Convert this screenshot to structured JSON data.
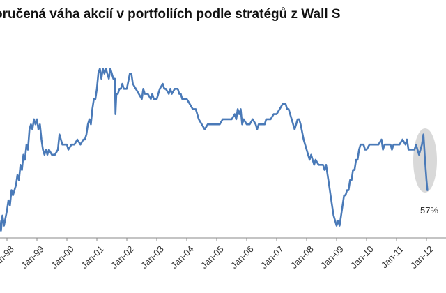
{
  "chart_data": {
    "type": "line",
    "title": "oručená váha akcií v portfoliích podle stratégů z Wall S",
    "xlabel": "",
    "ylabel": "",
    "grid": false,
    "legend": "none",
    "line_color": "#4a7ab8",
    "highlight_color": "#d9d9d9",
    "x_ticks": [
      "Jan-98",
      "Jan-99",
      "Jan-00",
      "Jan-01",
      "Jan-02",
      "Jan-03",
      "Jan-04",
      "Jan-05",
      "Jan-06",
      "Jan-07",
      "Jan-08",
      "Jan-09",
      "Jan-10",
      "Jan-11",
      "Jan-12"
    ],
    "annotation": {
      "label": "57%",
      "x": 2012.0
    },
    "series": [
      {
        "values": [
          [
            1997.75,
            51
          ],
          [
            1997.8,
            49
          ],
          [
            1997.85,
            52
          ],
          [
            1997.9,
            50
          ],
          [
            1998.0,
            53
          ],
          [
            1998.05,
            55
          ],
          [
            1998.1,
            54
          ],
          [
            1998.15,
            57
          ],
          [
            1998.2,
            56
          ],
          [
            1998.3,
            58
          ],
          [
            1998.35,
            60
          ],
          [
            1998.4,
            59
          ],
          [
            1998.45,
            62
          ],
          [
            1998.5,
            61
          ],
          [
            1998.55,
            64
          ],
          [
            1998.6,
            63
          ],
          [
            1998.65,
            66
          ],
          [
            1998.7,
            65
          ],
          [
            1998.75,
            69
          ],
          [
            1998.8,
            70
          ],
          [
            1998.85,
            69
          ],
          [
            1998.9,
            71
          ],
          [
            1998.95,
            70
          ],
          [
            1999.0,
            71
          ],
          [
            1999.05,
            69
          ],
          [
            1999.1,
            70
          ],
          [
            1999.15,
            67
          ],
          [
            1999.2,
            65
          ],
          [
            1999.25,
            64
          ],
          [
            1999.3,
            65
          ],
          [
            1999.35,
            64
          ],
          [
            1999.4,
            65
          ],
          [
            1999.5,
            64
          ],
          [
            1999.6,
            64
          ],
          [
            1999.7,
            65
          ],
          [
            1999.75,
            68
          ],
          [
            1999.8,
            67
          ],
          [
            1999.85,
            66
          ],
          [
            1999.9,
            66
          ],
          [
            2000.0,
            66
          ],
          [
            2000.05,
            65
          ],
          [
            2000.15,
            66
          ],
          [
            2000.25,
            66
          ],
          [
            2000.35,
            67
          ],
          [
            2000.45,
            66
          ],
          [
            2000.55,
            67
          ],
          [
            2000.6,
            67
          ],
          [
            2000.65,
            68
          ],
          [
            2000.7,
            70
          ],
          [
            2000.75,
            71
          ],
          [
            2000.8,
            70
          ],
          [
            2000.85,
            73
          ],
          [
            2000.9,
            75
          ],
          [
            2000.95,
            75
          ],
          [
            2001.0,
            77
          ],
          [
            2001.05,
            80
          ],
          [
            2001.1,
            81
          ],
          [
            2001.15,
            79
          ],
          [
            2001.2,
            81
          ],
          [
            2001.25,
            80
          ],
          [
            2001.3,
            81
          ],
          [
            2001.35,
            80
          ],
          [
            2001.4,
            79
          ],
          [
            2001.45,
            81
          ],
          [
            2001.5,
            80
          ],
          [
            2001.55,
            79
          ],
          [
            2001.6,
            79
          ],
          [
            2001.62,
            72
          ],
          [
            2001.65,
            76
          ],
          [
            2001.7,
            76
          ],
          [
            2001.75,
            77
          ],
          [
            2001.8,
            77
          ],
          [
            2001.85,
            78
          ],
          [
            2001.9,
            77
          ],
          [
            2002.0,
            77
          ],
          [
            2002.1,
            80
          ],
          [
            2002.15,
            80
          ],
          [
            2002.2,
            78
          ],
          [
            2002.3,
            77
          ],
          [
            2002.4,
            76
          ],
          [
            2002.5,
            75
          ],
          [
            2002.55,
            77
          ],
          [
            2002.6,
            76
          ],
          [
            2002.7,
            76
          ],
          [
            2002.8,
            75
          ],
          [
            2002.85,
            76
          ],
          [
            2002.9,
            75
          ],
          [
            2003.0,
            75
          ],
          [
            2003.05,
            76
          ],
          [
            2003.1,
            77
          ],
          [
            2003.2,
            78
          ],
          [
            2003.25,
            77
          ],
          [
            2003.3,
            77
          ],
          [
            2003.4,
            76
          ],
          [
            2003.45,
            77
          ],
          [
            2003.5,
            76
          ],
          [
            2003.6,
            77
          ],
          [
            2003.7,
            77
          ],
          [
            2003.75,
            76
          ],
          [
            2003.8,
            76
          ],
          [
            2003.85,
            75
          ],
          [
            2004.0,
            75
          ],
          [
            2004.1,
            74
          ],
          [
            2004.2,
            73
          ],
          [
            2004.3,
            73
          ],
          [
            2004.4,
            71
          ],
          [
            2004.5,
            70
          ],
          [
            2004.6,
            69
          ],
          [
            2004.7,
            70
          ],
          [
            2004.8,
            70
          ],
          [
            2004.9,
            70
          ],
          [
            2005.0,
            70
          ],
          [
            2005.1,
            70
          ],
          [
            2005.2,
            71
          ],
          [
            2005.3,
            71
          ],
          [
            2005.4,
            71
          ],
          [
            2005.5,
            71
          ],
          [
            2005.6,
            72
          ],
          [
            2005.65,
            71
          ],
          [
            2005.7,
            73
          ],
          [
            2005.75,
            72
          ],
          [
            2005.8,
            73
          ],
          [
            2005.85,
            70
          ],
          [
            2005.9,
            71
          ],
          [
            2006.0,
            70
          ],
          [
            2006.1,
            70
          ],
          [
            2006.2,
            71
          ],
          [
            2006.3,
            70
          ],
          [
            2006.35,
            69
          ],
          [
            2006.4,
            70
          ],
          [
            2006.5,
            70
          ],
          [
            2006.6,
            70
          ],
          [
            2006.65,
            71
          ],
          [
            2006.7,
            71
          ],
          [
            2006.8,
            71
          ],
          [
            2006.9,
            72
          ],
          [
            2007.0,
            72
          ],
          [
            2007.1,
            73
          ],
          [
            2007.2,
            74
          ],
          [
            2007.3,
            74
          ],
          [
            2007.35,
            73
          ],
          [
            2007.4,
            73
          ],
          [
            2007.5,
            71
          ],
          [
            2007.6,
            69
          ],
          [
            2007.7,
            71
          ],
          [
            2007.75,
            71
          ],
          [
            2007.8,
            70
          ],
          [
            2007.9,
            67
          ],
          [
            2008.0,
            65
          ],
          [
            2008.1,
            63
          ],
          [
            2008.15,
            64
          ],
          [
            2008.2,
            63
          ],
          [
            2008.25,
            62
          ],
          [
            2008.3,
            63
          ],
          [
            2008.4,
            62
          ],
          [
            2008.5,
            62
          ],
          [
            2008.55,
            62
          ],
          [
            2008.6,
            61
          ],
          [
            2008.65,
            62
          ],
          [
            2008.7,
            60
          ],
          [
            2008.75,
            58
          ],
          [
            2008.8,
            56
          ],
          [
            2008.85,
            54
          ],
          [
            2008.9,
            52
          ],
          [
            2008.95,
            51
          ],
          [
            2009.0,
            50
          ],
          [
            2009.05,
            51
          ],
          [
            2009.1,
            50
          ],
          [
            2009.15,
            52
          ],
          [
            2009.2,
            54
          ],
          [
            2009.25,
            56
          ],
          [
            2009.3,
            56
          ],
          [
            2009.35,
            57
          ],
          [
            2009.4,
            57
          ],
          [
            2009.45,
            59
          ],
          [
            2009.5,
            59
          ],
          [
            2009.55,
            61
          ],
          [
            2009.6,
            61
          ],
          [
            2009.65,
            63
          ],
          [
            2009.7,
            63
          ],
          [
            2009.75,
            65
          ],
          [
            2009.8,
            66
          ],
          [
            2009.85,
            66
          ],
          [
            2009.9,
            66
          ],
          [
            2009.95,
            65
          ],
          [
            2010.0,
            65
          ],
          [
            2010.1,
            66
          ],
          [
            2010.2,
            66
          ],
          [
            2010.3,
            66
          ],
          [
            2010.4,
            66
          ],
          [
            2010.5,
            67
          ],
          [
            2010.55,
            65
          ],
          [
            2010.6,
            66
          ],
          [
            2010.65,
            66
          ],
          [
            2010.7,
            66
          ],
          [
            2010.75,
            66
          ],
          [
            2010.8,
            66
          ],
          [
            2010.85,
            65
          ],
          [
            2010.9,
            66
          ],
          [
            2010.95,
            66
          ],
          [
            2011.0,
            66
          ],
          [
            2011.1,
            66
          ],
          [
            2011.2,
            67
          ],
          [
            2011.3,
            66
          ],
          [
            2011.35,
            67
          ],
          [
            2011.4,
            65
          ],
          [
            2011.5,
            65
          ],
          [
            2011.6,
            65
          ],
          [
            2011.65,
            66
          ],
          [
            2011.7,
            65
          ],
          [
            2011.75,
            64
          ],
          [
            2011.8,
            65
          ],
          [
            2011.85,
            66
          ],
          [
            2011.9,
            68
          ],
          [
            2011.95,
            63
          ],
          [
            2012.0,
            59
          ],
          [
            2012.03,
            57
          ]
        ]
      }
    ]
  }
}
